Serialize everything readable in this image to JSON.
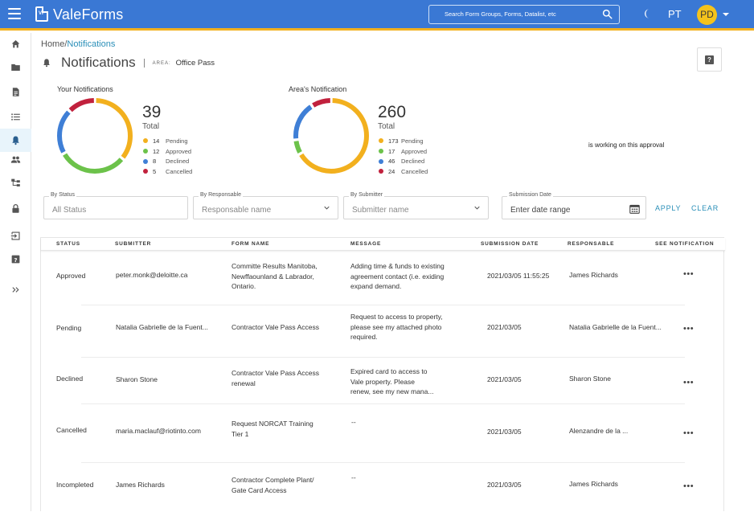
{
  "app": {
    "title": "ValeForms"
  },
  "header": {
    "search_placeholder": "Search Form Groups, Forms, Datalist, etc",
    "language": "PT",
    "avatar_initials": "PD"
  },
  "sidebar": {
    "items": [
      {
        "name": "home-icon"
      },
      {
        "name": "folder-icon"
      },
      {
        "name": "document-icon"
      },
      {
        "name": "list-icon"
      },
      {
        "name": "bell-icon",
        "active": true
      },
      {
        "name": "users-icon"
      },
      {
        "name": "hierarchy-icon"
      },
      {
        "name": "lock-icon"
      },
      {
        "name": "logout-icon"
      },
      {
        "name": "help-icon"
      },
      {
        "name": "expand-icon"
      }
    ]
  },
  "breadcrumb": {
    "home": "Home/",
    "current": "Notifications"
  },
  "page": {
    "title": "Notifications",
    "area_label": "AREA:",
    "area_value": "Office Pass",
    "help_label": "?"
  },
  "chart_data": [
    {
      "type": "pie",
      "title": "Your Notifications",
      "total": 39,
      "total_label": "Total",
      "categories": [
        "Pending",
        "Approved",
        "Declined",
        "Cancelled"
      ],
      "values": [
        14,
        12,
        8,
        5
      ],
      "colors": [
        "#f2b01e",
        "#6cc24a",
        "#3f7fd6",
        "#c1213d"
      ]
    },
    {
      "type": "pie",
      "title": "Area's Notification",
      "total": 260,
      "total_label": "Total",
      "categories": [
        "Pending",
        "Approved",
        "Declined",
        "Cancelled"
      ],
      "values": [
        173,
        17,
        46,
        24
      ],
      "colors": [
        "#f2b01e",
        "#6cc24a",
        "#3f7fd6",
        "#c1213d"
      ]
    }
  ],
  "working_note": "is working on this approval",
  "filters": {
    "status": {
      "label": "By Status",
      "placeholder": "All Status"
    },
    "responsable": {
      "label": "By Responsable",
      "placeholder": "Responsable name"
    },
    "submitter": {
      "label": "By Submitter",
      "placeholder": "Submitter name"
    },
    "date": {
      "label": "Submission Date",
      "placeholder": "Enter date range"
    },
    "apply": "APPLY",
    "clear": "CLEAR"
  },
  "table": {
    "headers": [
      "STATUS",
      "SUBMITTER",
      "FORM NAME",
      "MESSAGE",
      "SUBMISSION DATE",
      "RESPONSABLE",
      "SEE NOTIFICATION"
    ],
    "rows": [
      {
        "status": "Approved",
        "submitter": "peter.monk@deloitte.ca",
        "form": [
          "Committe Results Manitoba,",
          "Newffaounland & Labrador,",
          "Ontario."
        ],
        "message": [
          "Adding time & funds to existing",
          "agreement contact (i.e. exiding",
          "expand demand."
        ],
        "date": "2021/03/05 11:55:25",
        "responsable": "James Richards",
        "action": "•••"
      },
      {
        "status": "Pending",
        "submitter": "Natalia Gabrielle de la Fuent...",
        "form": [
          "Contractor Vale Pass Access"
        ],
        "message": [
          "Request to access to property,",
          "please see my attached photo",
          "required."
        ],
        "date": "2021/03/05",
        "responsable": "Natalia Gabrielle de la Fuent...",
        "action": "•••"
      },
      {
        "status": "Declined",
        "submitter": "Sharon Stone",
        "form": [
          "Contractor Vale Pass Access",
          "renewal"
        ],
        "message": [
          "Expired card to access to",
          "Vale property. Please",
          "renew, see my new mana..."
        ],
        "date": "2021/03/05",
        "responsable": "Sharon Stone",
        "action": "•••"
      },
      {
        "status": "Cancelled",
        "submitter": "maria.maclauf@riotinto.com",
        "form": [
          "Request NORCAT Training",
          "Tier 1"
        ],
        "message": [
          "--"
        ],
        "date": "2021/03/05",
        "responsable": "Alenzandre de la ...",
        "action": "•••"
      },
      {
        "status": "Incompleted",
        "submitter": "James Richards",
        "form": [
          "Contractor Complete Plant/",
          "Gate Card Access"
        ],
        "message": [
          "--"
        ],
        "date": "2021/03/05",
        "responsable": "James Richards",
        "action": "•••"
      }
    ]
  }
}
